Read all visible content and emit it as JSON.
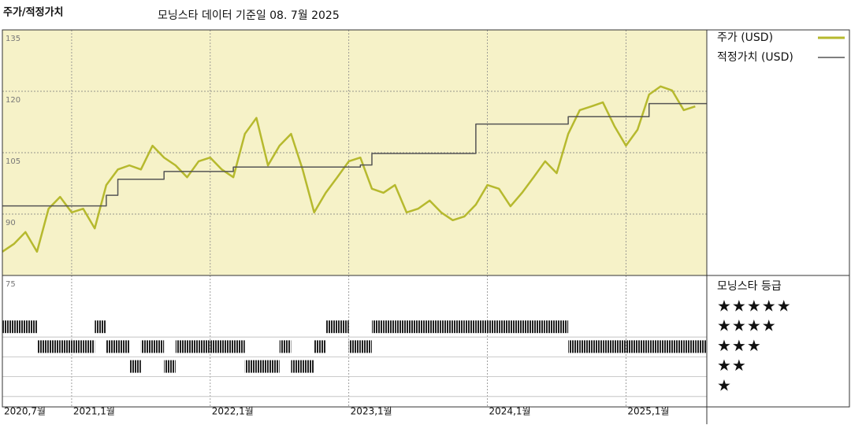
{
  "chart_data": {
    "type": "line",
    "title": "주가/적정가치",
    "subtitle": "모닝스타 데이터 기준일 08. 7월 2025",
    "x": [
      "2020-07",
      "2020-08",
      "2020-09",
      "2020-10",
      "2020-11",
      "2020-12",
      "2021-01",
      "2021-02",
      "2021-03",
      "2021-04",
      "2021-05",
      "2021-06",
      "2021-07",
      "2021-08",
      "2021-09",
      "2021-10",
      "2021-11",
      "2021-12",
      "2022-01",
      "2022-02",
      "2022-03",
      "2022-04",
      "2022-05",
      "2022-06",
      "2022-07",
      "2022-08",
      "2022-09",
      "2022-10",
      "2022-11",
      "2022-12",
      "2023-01",
      "2023-02",
      "2023-03",
      "2023-04",
      "2023-05",
      "2023-06",
      "2023-07",
      "2023-08",
      "2023-09",
      "2023-10",
      "2023-11",
      "2023-12",
      "2024-01",
      "2024-02",
      "2024-03",
      "2024-04",
      "2024-05",
      "2024-06",
      "2024-07",
      "2024-08",
      "2024-09",
      "2024-10",
      "2024-11",
      "2024-12",
      "2025-01",
      "2025-02",
      "2025-03",
      "2025-04",
      "2025-05",
      "2025-06",
      "2025-07"
    ],
    "series": [
      {
        "name": "주가 (USD)",
        "color": "#b6b92e",
        "step": false,
        "values": [
          80.8,
          82.7,
          85.6,
          80.8,
          91.3,
          94.2,
          90.4,
          91.3,
          86.5,
          97.1,
          100.9,
          101.9,
          100.9,
          106.7,
          103.8,
          101.9,
          99.0,
          102.9,
          103.8,
          100.9,
          99.0,
          109.6,
          113.5,
          101.9,
          106.7,
          109.6,
          100.9,
          90.4,
          95.2,
          99.0,
          102.9,
          103.8,
          96.2,
          95.2,
          97.1,
          90.4,
          91.3,
          93.3,
          90.4,
          88.5,
          89.4,
          92.3,
          97.1,
          96.2,
          91.9,
          95.2,
          99.0,
          102.9,
          100.0,
          109.6,
          115.4,
          116.3,
          117.3,
          111.5,
          106.7,
          110.6,
          119.2,
          121.2,
          120.2,
          115.4,
          116.3
        ]
      },
      {
        "name": "적정가치 (USD)",
        "color": "#555555",
        "step": true,
        "values": [
          92,
          92,
          92,
          92,
          92,
          92,
          92,
          92,
          92,
          94.6,
          98.5,
          98.5,
          98.5,
          98.5,
          100.4,
          100.4,
          100.4,
          100.4,
          100.4,
          100.4,
          101.5,
          101.5,
          101.5,
          101.5,
          101.5,
          101.5,
          101.5,
          101.5,
          101.5,
          101.5,
          101.5,
          102,
          104.8,
          104.8,
          104.8,
          104.8,
          104.8,
          104.8,
          104.8,
          104.8,
          104.8,
          112,
          112,
          112,
          112,
          112,
          112,
          112,
          112,
          113.8,
          113.8,
          113.8,
          113.8,
          113.8,
          113.8,
          113.8,
          117,
          117,
          117,
          117,
          117
        ]
      }
    ],
    "xlim": [
      "2020-07",
      "2025-08"
    ],
    "xticks": [
      {
        "value": "2020-07",
        "label": "2020,7월"
      },
      {
        "value": "2021-01",
        "label": "2021,1월"
      },
      {
        "value": "2022-01",
        "label": "2022,1월"
      },
      {
        "value": "2023-01",
        "label": "2023,1월"
      },
      {
        "value": "2024-01",
        "label": "2024,1월"
      },
      {
        "value": "2025-01",
        "label": "2025,1월"
      }
    ],
    "ylim": [
      75,
      135
    ],
    "yticks": [
      75,
      90,
      105,
      120,
      135
    ],
    "background": "#f6f2c8",
    "grid": true,
    "rating_title": "모닝스타 등급",
    "rating_labels": [
      "★★★★★",
      "★★★★",
      "★★★",
      "★★",
      "★"
    ],
    "rating_color": "#222222",
    "ratings": [
      4,
      4,
      4,
      3,
      3,
      3,
      3,
      3,
      4,
      3,
      3,
      2,
      3,
      3,
      2,
      3,
      3,
      3,
      3,
      3,
      3,
      2,
      2,
      2,
      3,
      2,
      2,
      3,
      4,
      4,
      3,
      3,
      4,
      4,
      4,
      4,
      4,
      4,
      4,
      4,
      4,
      4,
      4,
      4,
      4,
      4,
      4,
      4,
      4,
      3,
      3,
      3,
      3,
      3,
      3,
      3,
      3,
      3,
      3,
      3,
      3
    ]
  }
}
